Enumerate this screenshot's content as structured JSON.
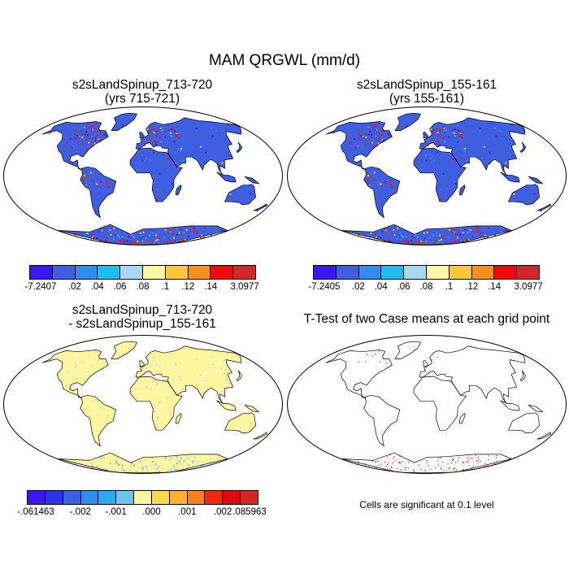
{
  "main_title": "MAM QRGWL (mm/d)",
  "panels": {
    "top_left": {
      "title_line1": "s2sLandSpinup_713-720",
      "title_line2": "(yrs 715-721)"
    },
    "top_right": {
      "title_line1": "s2sLandSpinup_155-161",
      "title_line2": "(yrs 155-161)"
    },
    "bottom_left": {
      "title_line1": "s2sLandSpinup_713-720",
      "title_line2": "- s2sLandSpinup_155-161"
    },
    "bottom_right": {
      "title_line1": "T-Test of two Case means at each grid point"
    }
  },
  "colorbars": {
    "top_left": {
      "colors": [
        "#3a17f0",
        "#3f5ee0",
        "#2e8ef0",
        "#1fbcf0",
        "#a8d8f0",
        "#fff7a0",
        "#fcc73a",
        "#f6911e",
        "#ef0a0a",
        "#d02828"
      ],
      "labels": [
        "-7.2407",
        ".02",
        ".04",
        ".06",
        ".08",
        ".1",
        ".12",
        ".14",
        "3.0977"
      ]
    },
    "top_right": {
      "colors": [
        "#3a17f0",
        "#3f5ee0",
        "#2e8ef0",
        "#1fbcf0",
        "#a8d8f0",
        "#fff7a0",
        "#fcc73a",
        "#f6911e",
        "#ef0a0a",
        "#d02828"
      ],
      "labels": [
        "-7.2405",
        ".02",
        ".04",
        ".06",
        ".08",
        ".1",
        ".12",
        ".14",
        "3.0977"
      ]
    },
    "bottom_left": {
      "colors": [
        "#3a17f0",
        "#2a33ea",
        "#3a62e6",
        "#2e8ef0",
        "#28aaf0",
        "#6cc4f0",
        "#fff7a0",
        "#fcd84a",
        "#fcb030",
        "#f6821e",
        "#ef2a0a",
        "#e00808",
        "#d02828"
      ],
      "labels": [
        "-.061463",
        "-.002",
        "-.001",
        ".000",
        ".001",
        ".002",
        ".085963"
      ]
    }
  },
  "significance_note": "Cells are significant at 0.1 level"
}
